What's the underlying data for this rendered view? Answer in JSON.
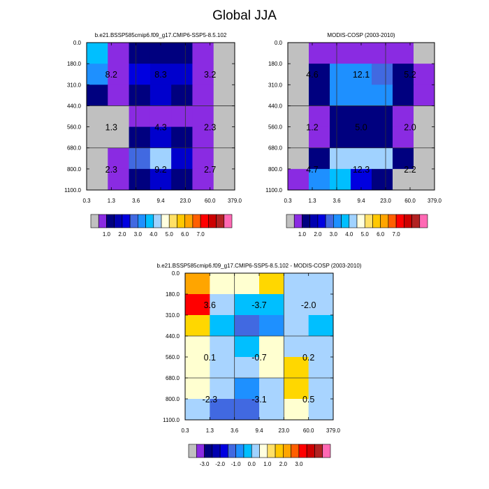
{
  "title": "Global JJA",
  "chart_data": [
    {
      "type": "heatmap",
      "title": "b.e21.BSSP585cmip6.f09_g17.CMIP6-SSP5-8.5.102",
      "x_ticks": [
        "0.3",
        "1.3",
        "3.6",
        "9.4",
        "23.0",
        "60.0",
        "379.0"
      ],
      "y_ticks": [
        "0.0",
        "180.0",
        "310.0",
        "440.0",
        "560.0",
        "680.0",
        "800.0",
        "1100.0"
      ],
      "bins": [
        [
          "c8",
          "c2",
          "c3",
          "c3",
          "c3",
          "c2",
          "c0"
        ],
        [
          "c7",
          "c2",
          "c5",
          "c4",
          "c4",
          "c2",
          "c0"
        ],
        [
          "c3",
          "c2",
          "c3",
          "c4",
          "c3",
          "c2",
          "c0"
        ],
        [
          "c0",
          "c0",
          "c2",
          "c2",
          "c2",
          "c2",
          "c0"
        ],
        [
          "c0",
          "c0",
          "c3",
          "c4",
          "c3",
          "c2",
          "c0"
        ],
        [
          "c0",
          "c2",
          "c6",
          "c10",
          "c4",
          "c2",
          "c0"
        ],
        [
          "c0",
          "c2",
          "c3",
          "c4",
          "c3",
          "c2",
          "c0"
        ]
      ],
      "summary_labels": [
        {
          "col": 0,
          "row": 0,
          "text": "8.2"
        },
        {
          "col": 1,
          "row": 0,
          "text": "8.3"
        },
        {
          "col": 2,
          "row": 0,
          "text": "3.2"
        },
        {
          "col": 0,
          "row": 1,
          "text": "1.3"
        },
        {
          "col": 1,
          "row": 1,
          "text": "4.3"
        },
        {
          "col": 2,
          "row": 1,
          "text": "2.3"
        },
        {
          "col": 0,
          "row": 2,
          "text": "2.3"
        },
        {
          "col": 1,
          "row": 2,
          "text": "9.2"
        },
        {
          "col": 2,
          "row": 2,
          "text": "2.7"
        }
      ],
      "colorbar": {
        "colors": [
          "#c0c0c0",
          "#8a2be2",
          "#00007f",
          "#0000b0",
          "#0000e0",
          "#4169e1",
          "#1e90ff",
          "#00bfff",
          "#a0d2ff",
          "#ffffe0",
          "#ffe066",
          "#ffc800",
          "#ffa500",
          "#ff5f00",
          "#ff0000",
          "#cd0000",
          "#b22222",
          "#ff69b4"
        ],
        "labels": [
          "1.0",
          "2.0",
          "3.0",
          "4.0",
          "5.0",
          "6.0",
          "7.0"
        ],
        "label_start": 2,
        "label_step": 2
      }
    },
    {
      "type": "heatmap",
      "title": "MODIS-COSP (2003-2010)",
      "x_ticks": [
        "0.3",
        "1.3",
        "3.6",
        "9.4",
        "23.0",
        "60.0",
        "379.0"
      ],
      "y_ticks": [
        "0.0",
        "180.0",
        "310.0",
        "440.0",
        "560.0",
        "680.0",
        "800.0",
        "1100.0"
      ],
      "bins": [
        [
          "c0",
          "c2",
          "c2",
          "c2",
          "c2",
          "c2",
          "c0"
        ],
        [
          "c0",
          "c3",
          "c7",
          "c7",
          "c6",
          "c3",
          "c2"
        ],
        [
          "c0",
          "c3",
          "c7",
          "c7",
          "c7",
          "c3",
          "c2"
        ],
        [
          "c0",
          "c2",
          "c3",
          "c3",
          "c3",
          "c2",
          "c0"
        ],
        [
          "c0",
          "c2",
          "c3",
          "c3",
          "c3",
          "c2",
          "c0"
        ],
        [
          "c0",
          "c3",
          "c9",
          "c9",
          "c9",
          "c3",
          "c0"
        ],
        [
          "c2",
          "c7",
          "c8",
          "c5",
          "c3",
          "c0",
          "c0"
        ]
      ],
      "summary_labels": [
        {
          "col": 0,
          "row": 0,
          "text": "4.6"
        },
        {
          "col": 1,
          "row": 0,
          "text": "12.1"
        },
        {
          "col": 2,
          "row": 0,
          "text": "5.2"
        },
        {
          "col": 0,
          "row": 1,
          "text": "1.2"
        },
        {
          "col": 1,
          "row": 1,
          "text": "5.0"
        },
        {
          "col": 2,
          "row": 1,
          "text": "2.0"
        },
        {
          "col": 0,
          "row": 2,
          "text": "4.7"
        },
        {
          "col": 1,
          "row": 2,
          "text": "12.3"
        },
        {
          "col": 2,
          "row": 2,
          "text": "2.2"
        }
      ],
      "colorbar": {
        "colors": [
          "#c0c0c0",
          "#8a2be2",
          "#00007f",
          "#0000b0",
          "#0000e0",
          "#4169e1",
          "#1e90ff",
          "#00bfff",
          "#a0d2ff",
          "#ffffe0",
          "#ffe066",
          "#ffc800",
          "#ffa500",
          "#ff5f00",
          "#ff0000",
          "#cd0000",
          "#b22222",
          "#ff69b4"
        ],
        "labels": [
          "1.0",
          "2.0",
          "3.0",
          "4.0",
          "5.0",
          "6.0",
          "7.0"
        ],
        "label_start": 2,
        "label_step": 2
      }
    },
    {
      "type": "heatmap",
      "title": "b.e21.BSSP585cmip6.f09_g17.CMIP6-SSP5-8.5.102 - MODIS-COSP (2003-2010)",
      "x_ticks": [
        "0.3",
        "1.3",
        "3.6",
        "9.4",
        "23.0",
        "60.0",
        "379.0"
      ],
      "y_ticks": [
        "0.0",
        "180.0",
        "310.0",
        "440.0",
        "560.0",
        "680.0",
        "800.0",
        "1100.0"
      ],
      "bins": [
        [
          "d12",
          "d9",
          "d9",
          "d11",
          "d8",
          "d8"
        ],
        [
          "d14",
          "d8",
          "d7",
          "d7",
          "d8",
          "d8"
        ],
        [
          "d11",
          "d7",
          "d5",
          "d6",
          "d8",
          "d7"
        ],
        [
          "d9",
          "d8",
          "d7",
          "d9",
          "d8",
          "d8"
        ],
        [
          "d9",
          "d8",
          "d8",
          "d9",
          "d11",
          "d8"
        ],
        [
          "d9",
          "d8",
          "d6",
          "d8",
          "d11",
          "d8"
        ],
        [
          "d8",
          "d5",
          "d5",
          "d8",
          "d9",
          "d8"
        ]
      ],
      "summary_labels": [
        {
          "col": 0,
          "row": 0,
          "text": "3.6"
        },
        {
          "col": 1,
          "row": 0,
          "text": "-3.7"
        },
        {
          "col": 2,
          "row": 0,
          "text": "-2.0"
        },
        {
          "col": 0,
          "row": 1,
          "text": "0.1"
        },
        {
          "col": 1,
          "row": 1,
          "text": "-0.7"
        },
        {
          "col": 2,
          "row": 1,
          "text": "0.2"
        },
        {
          "col": 0,
          "row": 2,
          "text": "-2.3"
        },
        {
          "col": 1,
          "row": 2,
          "text": "-3.1"
        },
        {
          "col": 2,
          "row": 2,
          "text": "0.5"
        }
      ],
      "colorbar": {
        "colors": [
          "#c0c0c0",
          "#8a2be2",
          "#00007f",
          "#0000b0",
          "#0000e0",
          "#4169e1",
          "#1e90ff",
          "#00bfff",
          "#a0d2ff",
          "#ffffe0",
          "#ffe066",
          "#ffc800",
          "#ffa500",
          "#ff5f00",
          "#ff0000",
          "#cd0000",
          "#b22222",
          "#ff69b4"
        ],
        "labels": [
          "-3.0",
          "-2.0",
          "-1.0",
          "0.0",
          "1.0",
          "2.0",
          "3.0"
        ],
        "label_start": 2,
        "label_step": 2
      }
    }
  ],
  "palette": {
    "c0": "#c0c0c0",
    "c2": "#8a2be2",
    "c3": "#00007f",
    "c4": "#0000cd",
    "c5": "#0000e0",
    "c6": "#4169e1",
    "c7": "#1e90ff",
    "c8": "#00bfff",
    "c9": "#a0d2ff",
    "c10": "#a0d2ff",
    "d5": "#4169e1",
    "d6": "#1e90ff",
    "d7": "#00bfff",
    "d8": "#a8d4ff",
    "d9": "#ffffd0",
    "d11": "#ffd700",
    "d12": "#ffa500",
    "d14": "#ff0000"
  }
}
